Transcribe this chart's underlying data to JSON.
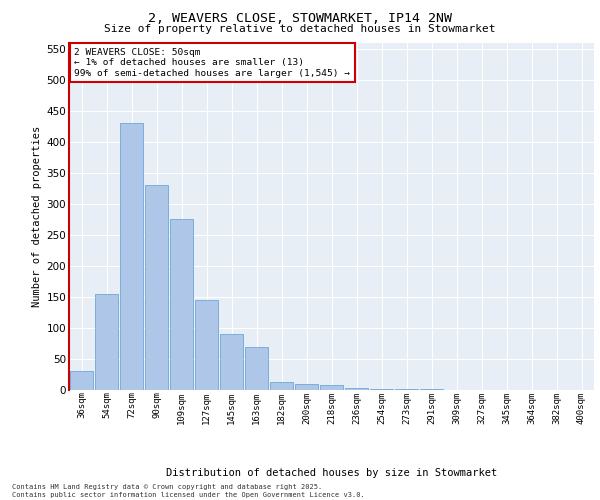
{
  "title_line1": "2, WEAVERS CLOSE, STOWMARKET, IP14 2NW",
  "title_line2": "Size of property relative to detached houses in Stowmarket",
  "xlabel": "Distribution of detached houses by size in Stowmarket",
  "ylabel": "Number of detached properties",
  "categories": [
    "36sqm",
    "54sqm",
    "72sqm",
    "90sqm",
    "109sqm",
    "127sqm",
    "145sqm",
    "163sqm",
    "182sqm",
    "200sqm",
    "218sqm",
    "236sqm",
    "254sqm",
    "273sqm",
    "291sqm",
    "309sqm",
    "327sqm",
    "345sqm",
    "364sqm",
    "382sqm",
    "400sqm"
  ],
  "values": [
    30,
    155,
    430,
    330,
    275,
    145,
    90,
    70,
    13,
    10,
    8,
    3,
    2,
    1,
    1,
    0,
    0,
    0,
    0,
    0,
    0
  ],
  "bar_color": "#aec6e8",
  "bar_edge_color": "#5a9fd4",
  "annotation_line1": "2 WEAVERS CLOSE: 50sqm",
  "annotation_line2": "← 1% of detached houses are smaller (13)",
  "annotation_line3": "99% of semi-detached houses are larger (1,545) →",
  "annotation_box_color": "#cc0000",
  "ylim": [
    0,
    560
  ],
  "yticks": [
    0,
    50,
    100,
    150,
    200,
    250,
    300,
    350,
    400,
    450,
    500,
    550
  ],
  "background_color": "#e8eef5",
  "grid_color": "#ffffff",
  "footer_line1": "Contains HM Land Registry data © Crown copyright and database right 2025.",
  "footer_line2": "Contains public sector information licensed under the Open Government Licence v3.0."
}
